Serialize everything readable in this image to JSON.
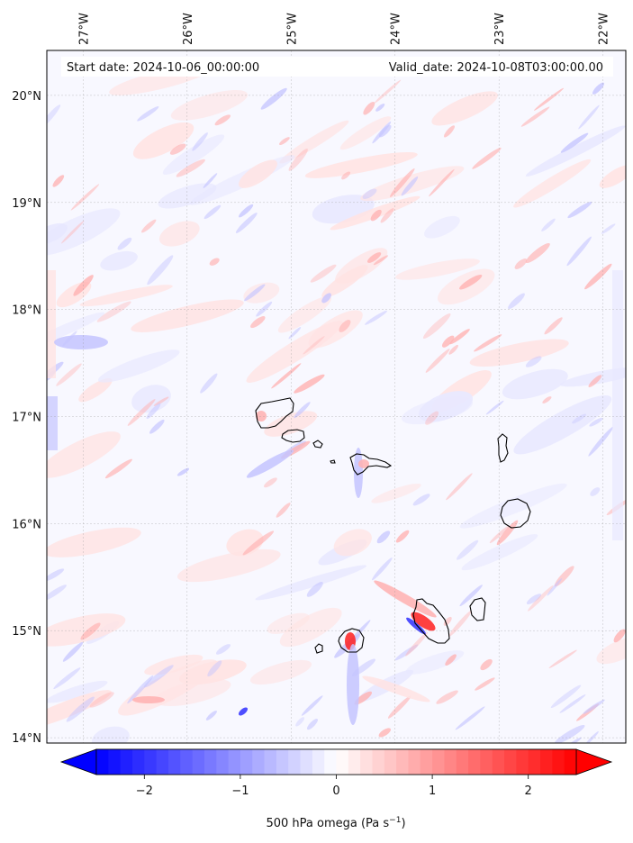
{
  "map": {
    "start_date_text": "Start date: 2024-10-06_00:00:00",
    "valid_date_text": "Valid_date: 2024-10-08T03:00:00.00",
    "longitude_labels": [
      {
        "lon": -27,
        "label": "27°W"
      },
      {
        "lon": -26,
        "label": "26°W"
      },
      {
        "lon": -25,
        "label": "25°W"
      },
      {
        "lon": -24,
        "label": "24°W"
      },
      {
        "lon": -23,
        "label": "23°W"
      },
      {
        "lon": -22,
        "label": "22°W"
      }
    ],
    "latitude_labels": [
      {
        "lat": 20,
        "label": "20°N"
      },
      {
        "lat": 19,
        "label": "19°N"
      },
      {
        "lat": 18,
        "label": "18°N"
      },
      {
        "lat": 17,
        "label": "17°N"
      },
      {
        "lat": 16,
        "label": "16°N"
      },
      {
        "lat": 15,
        "label": "15°N"
      },
      {
        "lat": 14,
        "label": "14°N"
      }
    ],
    "extent": {
      "lon_min": -27.35,
      "lon_max": -21.78,
      "lat_min": 13.95,
      "lat_max": 20.42
    },
    "field_colors": {
      "background": "#f8f8ff",
      "light_red": "#ffe3e3",
      "medium_red": "#ffb0b0",
      "strong_red": "#ff2020",
      "light_blue": "#e8e8ff",
      "medium_blue": "#c4c4ff",
      "strong_blue": "#3030ff"
    },
    "coastline_color": "#000000"
  },
  "colorbar": {
    "label_main": "500 hPa omega (Pa s",
    "label_sup": "−1",
    "label_close": ")",
    "ticks": [
      {
        "value": -2,
        "label": "−2"
      },
      {
        "value": -1,
        "label": "−1"
      },
      {
        "value": 0,
        "label": "0"
      },
      {
        "value": 1,
        "label": "1"
      },
      {
        "value": 2,
        "label": "2"
      }
    ],
    "vmin": -2.5,
    "vmax": 2.5,
    "cmap": "bwr",
    "extend": "both"
  }
}
